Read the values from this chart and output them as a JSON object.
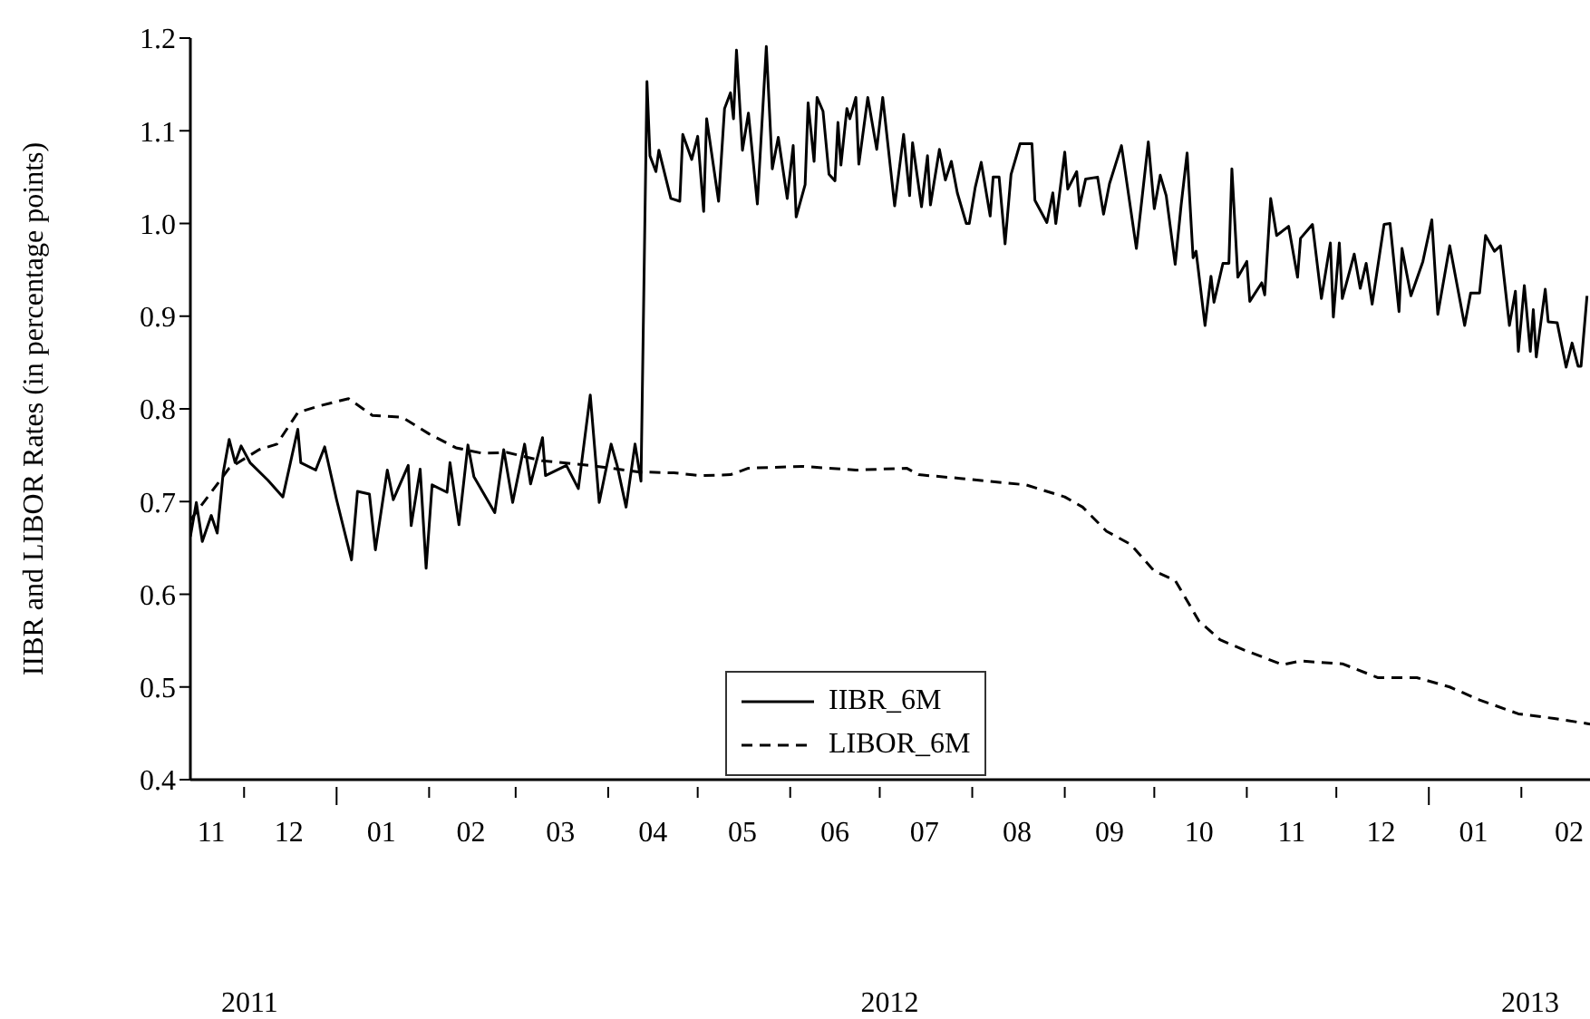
{
  "chart_data": {
    "type": "line",
    "ylabel": "IIBR and LIBOR Rates (in percentage points)",
    "annotations": [
      "2011",
      "2012",
      "2013"
    ],
    "xlim": [
      "2011-11-13",
      "2013-02-24"
    ],
    "xticks": [
      {
        "value": "2011-11-20",
        "label": "11"
      },
      {
        "value": "2011-12-01",
        "label": null
      },
      {
        "value": "2011-12-16",
        "label": "12"
      },
      {
        "value": "2012-01-01",
        "label": null
      },
      {
        "value": "2012-01-16",
        "label": "01"
      },
      {
        "value": "2012-02-01",
        "label": null
      },
      {
        "value": "2012-02-15",
        "label": "02"
      },
      {
        "value": "2012-03-01",
        "label": null
      },
      {
        "value": "2012-03-16",
        "label": "03"
      },
      {
        "value": "2012-04-01",
        "label": null
      },
      {
        "value": "2012-04-16",
        "label": "04"
      },
      {
        "value": "2012-05-01",
        "label": null
      },
      {
        "value": "2012-05-16",
        "label": "05"
      },
      {
        "value": "2012-06-01",
        "label": null
      },
      {
        "value": "2012-06-16",
        "label": "06"
      },
      {
        "value": "2012-07-01",
        "label": null
      },
      {
        "value": "2012-07-16",
        "label": "07"
      },
      {
        "value": "2012-08-01",
        "label": null
      },
      {
        "value": "2012-08-16",
        "label": "08"
      },
      {
        "value": "2012-09-01",
        "label": null
      },
      {
        "value": "2012-09-16",
        "label": "09"
      },
      {
        "value": "2012-10-01",
        "label": null
      },
      {
        "value": "2012-10-16",
        "label": "10"
      },
      {
        "value": "2012-11-01",
        "label": null
      },
      {
        "value": "2012-11-16",
        "label": "11"
      },
      {
        "value": "2012-12-01",
        "label": null
      },
      {
        "value": "2012-12-16",
        "label": "12"
      },
      {
        "value": "2013-01-01",
        "label": null
      },
      {
        "value": "2013-01-16",
        "label": "01"
      },
      {
        "value": "2013-02-01",
        "label": null
      },
      {
        "value": "2013-02-17",
        "label": "02"
      }
    ],
    "ylim": [
      0.4,
      1.2
    ],
    "yticks": [
      {
        "value": 0.4,
        "label": "0.4"
      },
      {
        "value": 0.5,
        "label": "0.5"
      },
      {
        "value": 0.6,
        "label": "0.6"
      },
      {
        "value": 0.7,
        "label": "0.7"
      },
      {
        "value": 0.8,
        "label": "0.8"
      },
      {
        "value": 0.9,
        "label": "0.9"
      },
      {
        "value": 1.0,
        "label": "1.0"
      },
      {
        "value": 1.1,
        "label": "1.1"
      },
      {
        "value": 1.2,
        "label": "1.2"
      }
    ],
    "legend": "bottom",
    "marker": "none",
    "series": [
      {
        "name": "IIBR_6M",
        "color": "#000000",
        "line_style": "solid",
        "x": [
          "2011-11-13",
          "2011-11-15",
          "2011-11-17",
          "2011-11-20",
          "2011-11-22",
          "2011-11-24",
          "2011-11-26",
          "2011-11-28",
          "2011-11-30",
          "2011-12-03",
          "2011-12-09",
          "2011-12-14",
          "2011-12-19",
          "2011-12-20",
          "2011-12-25",
          "2011-12-28",
          "2012-01-01",
          "2012-01-06",
          "2012-01-08",
          "2012-01-12",
          "2012-01-14",
          "2012-01-18",
          "2012-01-20",
          "2012-01-25",
          "2012-01-26",
          "2012-01-29",
          "2012-01-31",
          "2012-02-02",
          "2012-02-07",
          "2012-02-08",
          "2012-02-11",
          "2012-02-14",
          "2012-02-16",
          "2012-02-23",
          "2012-02-26",
          "2012-02-29",
          "2012-03-04",
          "2012-03-06",
          "2012-03-10",
          "2012-03-11",
          "2012-03-18",
          "2012-03-22",
          "2012-03-26",
          "2012-03-29",
          "2012-04-02",
          "2012-04-04",
          "2012-04-07",
          "2012-04-10",
          "2012-04-12",
          "2012-04-14",
          "2012-04-15",
          "2012-04-17",
          "2012-04-18",
          "2012-04-22",
          "2012-04-25",
          "2012-04-26",
          "2012-04-29",
          "2012-05-01",
          "2012-05-03",
          "2012-05-04",
          "2012-05-08",
          "2012-05-10",
          "2012-05-12",
          "2012-05-13",
          "2012-05-14",
          "2012-05-16",
          "2012-05-18",
          "2012-05-21",
          "2012-05-24",
          "2012-05-26",
          "2012-05-28",
          "2012-05-31",
          "2012-06-02",
          "2012-06-03",
          "2012-06-06",
          "2012-06-07",
          "2012-06-09",
          "2012-06-10",
          "2012-06-12",
          "2012-06-14",
          "2012-06-16",
          "2012-06-17",
          "2012-06-18",
          "2012-06-20",
          "2012-06-21",
          "2012-06-23",
          "2012-06-24",
          "2012-06-27",
          "2012-06-30",
          "2012-07-02",
          "2012-07-06",
          "2012-07-09",
          "2012-07-11",
          "2012-07-12",
          "2012-07-15",
          "2012-07-17",
          "2012-07-18",
          "2012-07-21",
          "2012-07-23",
          "2012-07-25",
          "2012-07-27",
          "2012-07-30",
          "2012-07-31",
          "2012-08-02",
          "2012-08-04",
          "2012-08-07",
          "2012-08-08",
          "2012-08-10",
          "2012-08-12",
          "2012-08-14",
          "2012-08-17",
          "2012-08-21",
          "2012-08-22",
          "2012-08-26",
          "2012-08-28",
          "2012-08-29",
          "2012-09-01",
          "2012-09-02",
          "2012-09-05",
          "2012-09-06",
          "2012-09-08",
          "2012-09-12",
          "2012-09-14",
          "2012-09-16",
          "2012-09-20",
          "2012-09-25",
          "2012-09-29",
          "2012-10-01",
          "2012-10-03",
          "2012-10-05",
          "2012-10-08",
          "2012-10-10",
          "2012-10-12",
          "2012-10-14",
          "2012-10-15",
          "2012-10-18",
          "2012-10-20",
          "2012-10-21",
          "2012-10-24",
          "2012-10-26",
          "2012-10-27",
          "2012-10-29",
          "2012-11-01",
          "2012-11-02",
          "2012-11-06",
          "2012-11-07",
          "2012-11-09",
          "2012-11-11",
          "2012-11-15",
          "2012-11-18",
          "2012-11-19",
          "2012-11-23",
          "2012-11-26",
          "2012-11-29",
          "2012-11-30",
          "2012-12-02",
          "2012-12-03",
          "2012-12-07",
          "2012-12-09",
          "2012-12-11",
          "2012-12-13",
          "2012-12-17",
          "2012-12-19",
          "2012-12-22",
          "2012-12-23",
          "2012-12-26",
          "2012-12-30",
          "2013-01-02",
          "2013-01-04",
          "2013-01-08",
          "2013-01-13",
          "2013-01-15",
          "2013-01-18",
          "2013-01-20",
          "2013-01-23",
          "2013-01-25",
          "2013-01-28",
          "2013-01-30",
          "2013-01-31",
          "2013-02-02",
          "2013-02-04",
          "2013-02-05",
          "2013-02-06",
          "2013-02-09",
          "2013-02-10",
          "2013-02-13",
          "2013-02-16",
          "2013-02-18",
          "2013-02-20",
          "2013-02-21",
          "2013-02-23"
        ],
        "values": [
          0.662,
          0.699,
          0.657,
          0.685,
          0.666,
          0.731,
          0.767,
          0.742,
          0.76,
          0.742,
          0.723,
          0.705,
          0.778,
          0.742,
          0.734,
          0.759,
          0.702,
          0.637,
          0.711,
          0.708,
          0.648,
          0.734,
          0.702,
          0.739,
          0.674,
          0.735,
          0.628,
          0.718,
          0.71,
          0.742,
          0.675,
          0.761,
          0.727,
          0.688,
          0.756,
          0.699,
          0.762,
          0.719,
          0.769,
          0.728,
          0.739,
          0.714,
          0.815,
          0.699,
          0.762,
          0.739,
          0.694,
          0.762,
          0.722,
          1.153,
          1.073,
          1.056,
          1.079,
          1.027,
          1.024,
          1.096,
          1.069,
          1.094,
          1.013,
          1.113,
          1.024,
          1.124,
          1.141,
          1.113,
          1.187,
          1.079,
          1.119,
          1.021,
          1.191,
          1.059,
          1.093,
          1.027,
          1.084,
          1.007,
          1.042,
          1.13,
          1.067,
          1.136,
          1.121,
          1.053,
          1.046,
          1.109,
          1.063,
          1.124,
          1.113,
          1.136,
          1.064,
          1.136,
          1.08,
          1.136,
          1.019,
          1.096,
          1.03,
          1.087,
          1.018,
          1.073,
          1.02,
          1.08,
          1.047,
          1.067,
          1.033,
          1.0,
          1.0,
          1.039,
          1.066,
          1.008,
          1.05,
          1.05,
          0.978,
          1.053,
          1.086,
          1.086,
          1.025,
          1.001,
          1.033,
          1.0,
          1.077,
          1.037,
          1.056,
          1.019,
          1.048,
          1.05,
          1.01,
          1.043,
          1.084,
          0.973,
          1.088,
          1.016,
          1.052,
          1.03,
          0.956,
          1.02,
          1.076,
          0.963,
          0.97,
          0.89,
          0.943,
          0.915,
          0.957,
          0.957,
          1.059,
          0.942,
          0.959,
          0.916,
          0.936,
          0.923,
          1.027,
          0.987,
          0.997,
          0.942,
          0.984,
          0.999,
          0.919,
          0.979,
          0.899,
          0.979,
          0.919,
          0.967,
          0.93,
          0.957,
          0.913,
          0.999,
          1.0,
          0.905,
          0.973,
          0.922,
          0.959,
          1.004,
          0.902,
          0.976,
          0.89,
          0.925,
          0.925,
          0.987,
          0.97,
          0.976,
          0.89,
          0.927,
          0.862,
          0.933,
          0.862,
          0.907,
          0.856,
          0.929,
          0.894,
          0.893,
          0.845,
          0.871,
          0.846,
          0.846,
          0.922
        ]
      },
      {
        "name": "LIBOR_6M",
        "color": "#000000",
        "line_style": "dashed",
        "x": [
          "2011-11-13",
          "2011-11-26",
          "2011-12-06",
          "2011-12-12",
          "2011-12-19",
          "2011-12-26",
          "2012-01-05",
          "2012-01-13",
          "2012-01-23",
          "2012-02-01",
          "2012-02-10",
          "2012-02-19",
          "2012-02-27",
          "2012-03-10",
          "2012-03-26",
          "2012-04-11",
          "2012-04-23",
          "2012-05-02",
          "2012-05-12",
          "2012-05-18",
          "2012-06-05",
          "2012-06-23",
          "2012-07-10",
          "2012-07-14",
          "2012-07-28",
          "2012-08-19",
          "2012-09-01",
          "2012-09-07",
          "2012-09-15",
          "2012-09-23",
          "2012-10-01",
          "2012-10-08",
          "2012-10-16",
          "2012-10-23",
          "2012-10-31",
          "2012-11-13",
          "2012-11-19",
          "2012-12-03",
          "2012-12-15",
          "2012-12-28",
          "2013-01-08",
          "2013-01-18",
          "2013-01-31",
          "2013-02-12",
          "2013-02-24"
        ],
        "values": [
          0.68,
          0.736,
          0.756,
          0.762,
          0.796,
          0.803,
          0.811,
          0.793,
          0.791,
          0.773,
          0.758,
          0.752,
          0.753,
          0.744,
          0.739,
          0.732,
          0.731,
          0.728,
          0.729,
          0.736,
          0.738,
          0.734,
          0.736,
          0.729,
          0.725,
          0.718,
          0.705,
          0.694,
          0.668,
          0.654,
          0.625,
          0.615,
          0.571,
          0.551,
          0.54,
          0.524,
          0.528,
          0.525,
          0.51,
          0.51,
          0.5,
          0.486,
          0.471,
          0.466,
          0.46
        ]
      }
    ]
  }
}
